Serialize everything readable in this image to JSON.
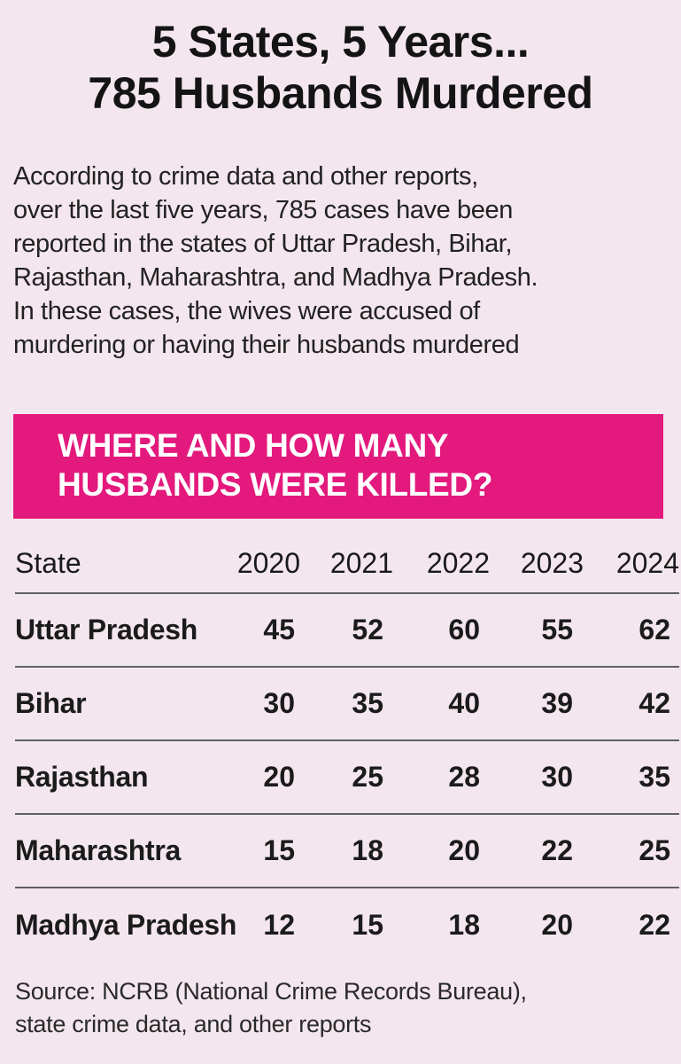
{
  "headline": {
    "line1": "5 States, 5 Years...",
    "line2": "785 Husbands Murdered"
  },
  "intro": {
    "lines": [
      "According to crime data and other reports,",
      "over the last five years, 785 cases have been",
      "reported in the states of Uttar Pradesh, Bihar,",
      "Rajasthan, Maharashtra, and Madhya Pradesh.",
      "In these cases, the wives were accused of",
      "murdering or having their husbands murdered"
    ]
  },
  "banner": {
    "line1": "WHERE AND HOW MANY",
    "line2": "HUSBANDS WERE KILLED?",
    "color": "#e3197d"
  },
  "table": {
    "headers": [
      "State",
      "2020",
      "2021",
      "2022",
      "2023",
      "2024"
    ],
    "rows": [
      {
        "state": "Uttar Pradesh",
        "values": [
          "45",
          "52",
          "60",
          "55",
          "62"
        ]
      },
      {
        "state": "Bihar",
        "values": [
          "30",
          "35",
          "40",
          "39",
          "42"
        ]
      },
      {
        "state": "Rajasthan",
        "values": [
          "20",
          "25",
          "28",
          "30",
          "35"
        ]
      },
      {
        "state": "Maharashtra",
        "values": [
          "15",
          "18",
          "20",
          "22",
          "25"
        ]
      },
      {
        "state": "Madhya Pradesh",
        "values": [
          "12",
          "15",
          "18",
          "20",
          "22"
        ]
      }
    ]
  },
  "source": {
    "line1": "Source: NCRB (National Crime Records Bureau),",
    "line2": "state crime data, and other reports"
  }
}
